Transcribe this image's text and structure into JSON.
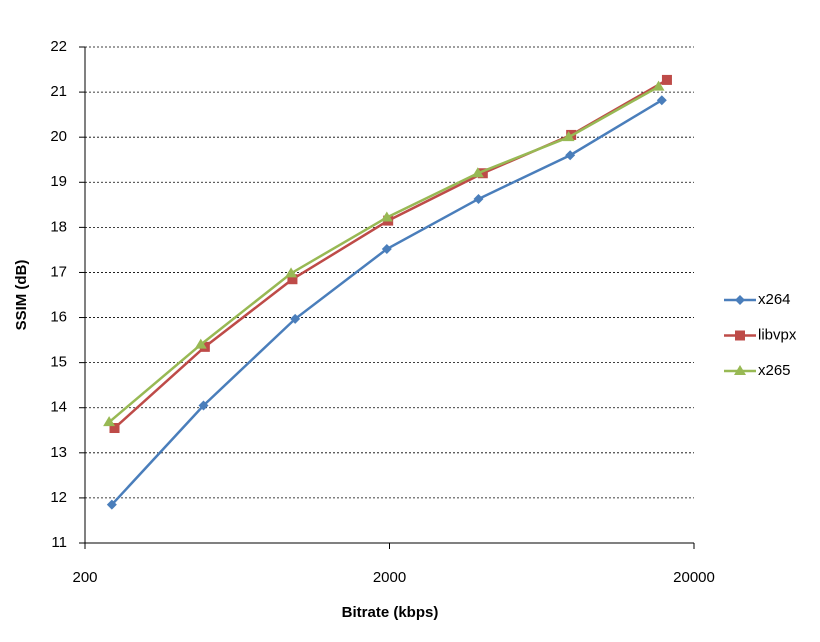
{
  "chart_data": {
    "type": "line",
    "x_label": "Bitrate (kbps)",
    "y_label": "SSIM (dB)",
    "xlog": true,
    "xlim": [
      200,
      20000
    ],
    "xticks": [
      200,
      2000,
      20000
    ],
    "ylim": [
      11,
      22
    ],
    "yticks": [
      11,
      12,
      13,
      14,
      15,
      16,
      17,
      18,
      19,
      20,
      21,
      22
    ],
    "grid": true,
    "legend": "right",
    "series": [
      {
        "name": "x264",
        "color": "#4a7ebb",
        "marker": "diamond",
        "x": [
          245,
          490,
          980,
          1960,
          3920,
          7840,
          15680
        ],
        "values": [
          11.85,
          14.05,
          15.97,
          17.52,
          18.63,
          19.6,
          20.82
        ]
      },
      {
        "name": "libvpx",
        "color": "#be4b48",
        "marker": "square",
        "x": [
          250,
          495,
          960,
          1980,
          4050,
          7900,
          16300
        ],
        "values": [
          13.55,
          15.35,
          16.85,
          18.15,
          19.2,
          20.05,
          21.27
        ]
      },
      {
        "name": "x265",
        "color": "#98b954",
        "marker": "triangle",
        "x": [
          240,
          480,
          950,
          1960,
          3900,
          7750,
          15300
        ],
        "values": [
          13.68,
          15.4,
          16.98,
          18.22,
          19.2,
          20.0,
          21.12
        ]
      }
    ]
  }
}
